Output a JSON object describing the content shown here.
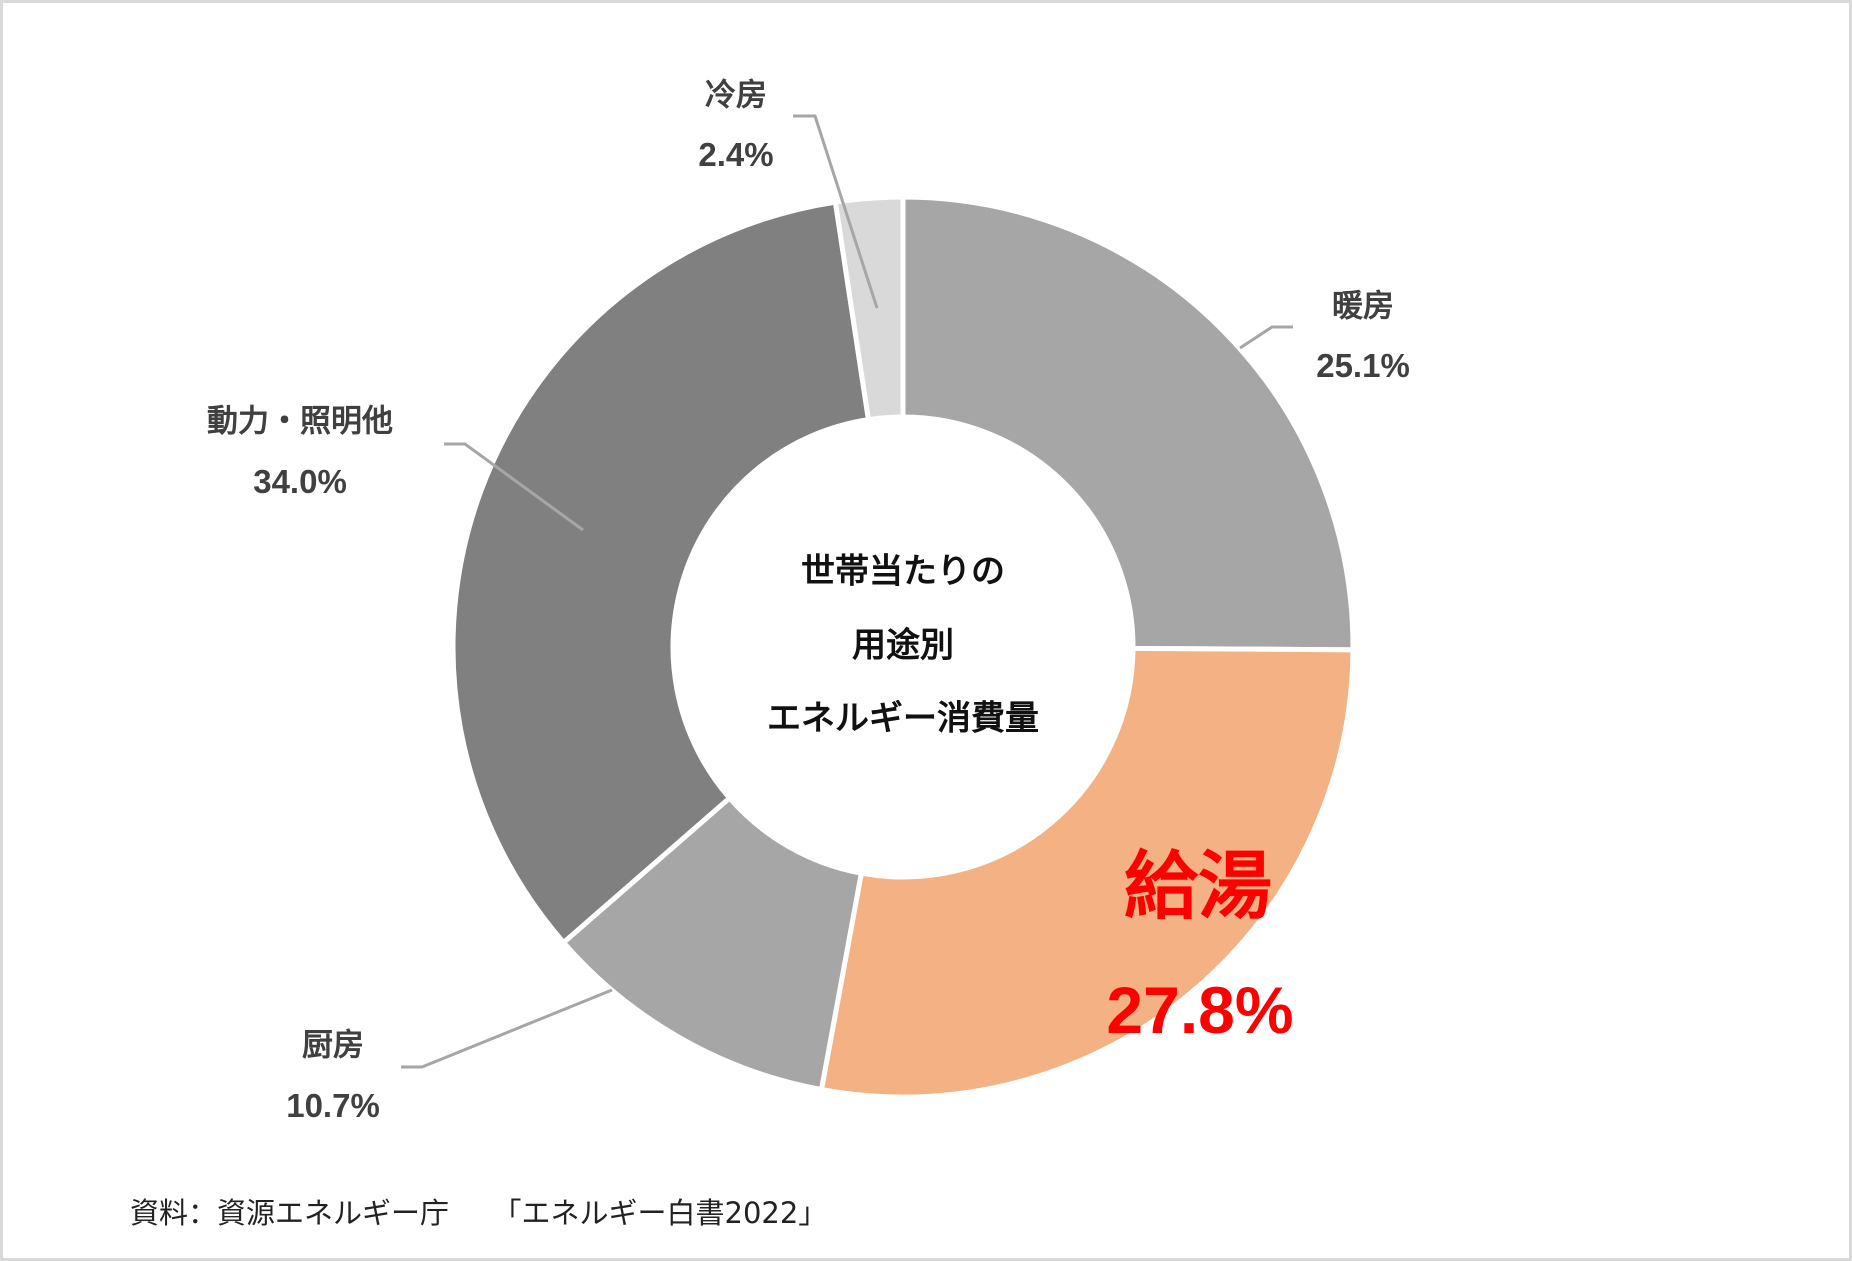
{
  "chart_data": {
    "type": "pie",
    "subtype": "donut",
    "title": "世帯当たりの用途別エネルギー消費量",
    "center_text": [
      "世帯当たりの",
      "用途別",
      "エネルギー消費量"
    ],
    "categories": [
      "暖房",
      "給湯",
      "厨房",
      "動力・照明他",
      "冷房"
    ],
    "values": [
      25.1,
      27.8,
      10.7,
      34.0,
      2.4
    ],
    "unit": "%",
    "labels": [
      "25.1%",
      "27.8%",
      "10.7%",
      "34.0%",
      "2.4%"
    ],
    "colors": [
      "#a6a6a6",
      "#f4b183",
      "#a6a6a6",
      "#808080",
      "#d9d9d9"
    ],
    "highlight": {
      "category": "給湯",
      "value": "27.8%",
      "color": "#ff0000"
    },
    "start_angle_deg": 0,
    "direction": "clockwise",
    "source": "資料：資源エネルギー庁　「エネルギー白書2022」"
  },
  "labels": {
    "heating": {
      "name": "暖房",
      "pct": "25.1%"
    },
    "hot_water": {
      "name": "給湯",
      "pct": "27.8%"
    },
    "kitchen": {
      "name": "厨房",
      "pct": "10.7%"
    },
    "power_lighting": {
      "name": "動力・照明他",
      "pct": "34.0%"
    },
    "cooling": {
      "name": "冷房",
      "pct": "2.4%"
    }
  },
  "center": {
    "line1": "世帯当たりの",
    "line2": "用途別",
    "line3": "エネルギー消費量"
  },
  "footer": {
    "source": "資料：資源エネルギー庁　　「エネルギー白書2022」"
  }
}
